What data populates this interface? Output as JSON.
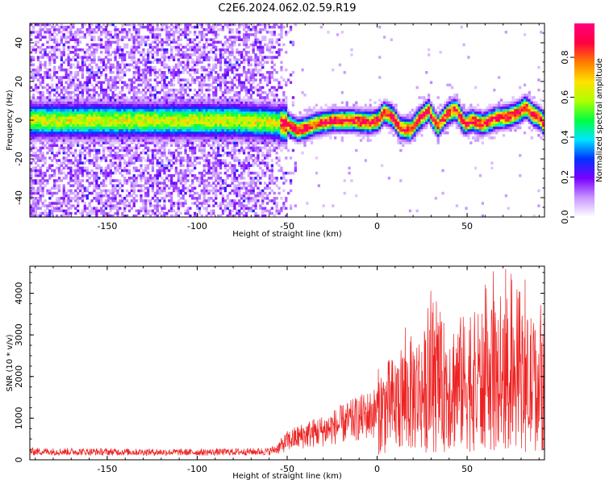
{
  "title": "C2E6.2024.062.02.59.R19",
  "chart_data": [
    {
      "type": "heatmap",
      "name": "spectrogram",
      "xlabel": "Height of straight line (km)",
      "ylabel": "Frequency (Hz)",
      "xlim": [
        -193,
        93
      ],
      "ylim": [
        -50,
        50
      ],
      "xticks": [
        -150,
        -100,
        -50,
        0,
        50
      ],
      "yticks": [
        -40,
        -20,
        0,
        20,
        40
      ],
      "colorbar": {
        "label": "Normalized spectral amplitude",
        "range": [
          0,
          0.97
        ],
        "ticks": [
          0.0,
          0.2,
          0.4,
          0.6,
          0.8
        ],
        "colors": [
          "#ffffff",
          "#c896ff",
          "#7a00ff",
          "#0033ff",
          "#00e5ff",
          "#00ff40",
          "#b0ff00",
          "#ffe000",
          "#ff7a00",
          "#ff0040",
          "#ff0080"
        ]
      },
      "ridge_center_hz": [
        [
          -193,
          0
        ],
        [
          -160,
          0
        ],
        [
          -120,
          0
        ],
        [
          -80,
          0
        ],
        [
          -60,
          -1
        ],
        [
          -50,
          -2
        ],
        [
          -45,
          -5
        ],
        [
          -40,
          -4
        ],
        [
          -35,
          -2
        ],
        [
          -25,
          0
        ],
        [
          -15,
          0
        ],
        [
          -5,
          -1
        ],
        [
          0,
          0
        ],
        [
          3,
          4
        ],
        [
          8,
          2
        ],
        [
          12,
          -4
        ],
        [
          18,
          -5
        ],
        [
          22,
          0
        ],
        [
          28,
          5
        ],
        [
          33,
          -3
        ],
        [
          38,
          3
        ],
        [
          43,
          6
        ],
        [
          48,
          -2
        ],
        [
          52,
          0
        ],
        [
          58,
          -2
        ],
        [
          65,
          1
        ],
        [
          72,
          2
        ],
        [
          78,
          4
        ],
        [
          82,
          7
        ],
        [
          86,
          3
        ],
        [
          90,
          1
        ],
        [
          93,
          -3
        ]
      ]
    },
    {
      "type": "line",
      "name": "snr",
      "xlabel": "Height of straight line (km)",
      "ylabel": "SNR (10 * v/v)",
      "xlim": [
        -193,
        93
      ],
      "ylim": [
        0,
        4650
      ],
      "xticks": [
        -150,
        -100,
        -50,
        0,
        50
      ],
      "yticks": [
        0,
        1000,
        2000,
        3000,
        4000
      ],
      "color": "#ee2222",
      "trend": [
        [
          -193,
          200
        ],
        [
          -150,
          190
        ],
        [
          -100,
          180
        ],
        [
          -60,
          200
        ],
        [
          -55,
          280
        ],
        [
          -50,
          450
        ],
        [
          -40,
          600
        ],
        [
          -30,
          700
        ],
        [
          -20,
          850
        ],
        [
          -10,
          1000
        ],
        [
          0,
          1150
        ],
        [
          10,
          1350
        ],
        [
          20,
          1600
        ],
        [
          30,
          1700
        ],
        [
          40,
          1800
        ],
        [
          50,
          1850
        ],
        [
          60,
          1900
        ],
        [
          70,
          1900
        ],
        [
          80,
          1850
        ],
        [
          93,
          1800
        ]
      ]
    }
  ],
  "colors": {
    "snr_line": "#ee2222",
    "axis": "#000000",
    "background": "#ffffff"
  }
}
